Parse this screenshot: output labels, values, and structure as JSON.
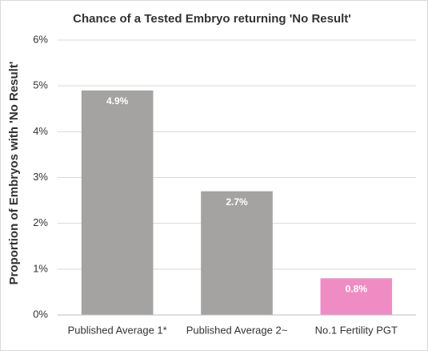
{
  "chart_data": {
    "type": "bar",
    "title": "Chance of a Tested Embryo returning 'No Result'",
    "y_label": "Proportion of Embryos with 'No Result'",
    "categories": [
      "Published Average 1*",
      "Published Average 2~",
      "No.1 Fertility PGT"
    ],
    "values": [
      4.9,
      2.7,
      0.8
    ],
    "value_labels": [
      "4.9%",
      "2.7%",
      "0.8%"
    ],
    "colors": [
      "#a5a2a2",
      "#a5a2a2",
      "#f08cc4"
    ],
    "ylim": [
      0,
      6
    ],
    "yticks": [
      {
        "value": 0,
        "label": "0%"
      },
      {
        "value": 1,
        "label": "1%"
      },
      {
        "value": 2,
        "label": "2%"
      },
      {
        "value": 3,
        "label": "3%"
      },
      {
        "value": 4,
        "label": "4%"
      },
      {
        "value": 5,
        "label": "5%"
      },
      {
        "value": 6,
        "label": "6%"
      }
    ],
    "grid": true
  }
}
